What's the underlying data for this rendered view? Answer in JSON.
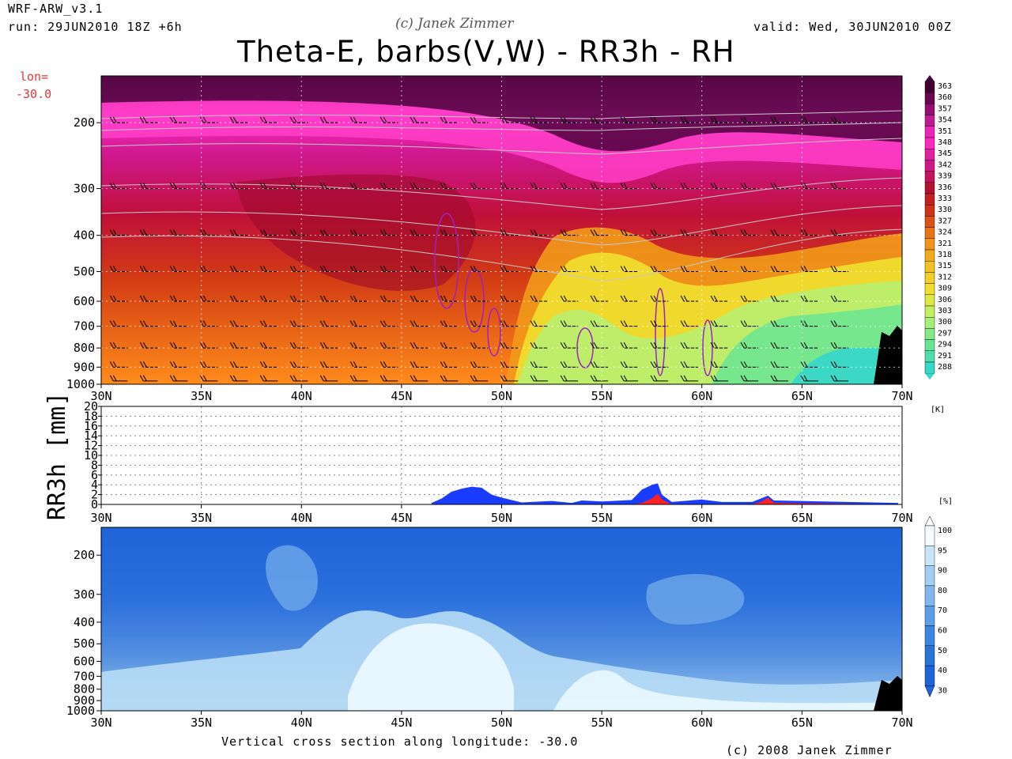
{
  "header": {
    "model": "WRF-ARW_v3.1",
    "run": "run: 29JUN2010 18Z +6h",
    "copyright_top": "(c) Janek Zimmer",
    "valid": "valid: Wed, 30JUN2010 00Z",
    "title": "Theta-E, barbs(V,W) - RR3h - RH",
    "lon_label": "lon=",
    "lon_value": "-30.0"
  },
  "footer": {
    "caption": "Vertical cross section along longitude: -30.0",
    "copyright": "(c) 2008 Janek Zimmer"
  },
  "colors": {
    "theta_low": "#38d8c8",
    "theta_mid": "#f0e030",
    "theta_high": "#ff30c8",
    "theta_top": "#400030",
    "rr_blue": "#1a3cff",
    "rr_red": "#ff2020",
    "rh_low": "#1f63d8",
    "rh_high": "#f4fcff",
    "terrain": "#000000",
    "contour_purple": "#a020c0"
  },
  "chart_data": [
    {
      "type": "heatmap",
      "title": "Theta-E, barbs(V,W)",
      "xlabel": "",
      "ylabel": "",
      "x_ticks": [
        "30N",
        "35N",
        "40N",
        "45N",
        "50N",
        "55N",
        "60N",
        "65N",
        "70N"
      ],
      "xlim": [
        30,
        70
      ],
      "y_ticks": [
        200,
        300,
        400,
        500,
        600,
        700,
        800,
        900,
        1000
      ],
      "ylim": [
        1000,
        150
      ],
      "y_scale": "log",
      "colorbar_levels": [
        363,
        360,
        357,
        354,
        351,
        348,
        345,
        342,
        339,
        336,
        333,
        330,
        327,
        324,
        321,
        318,
        315,
        312,
        309,
        306,
        303,
        300,
        297,
        294,
        291,
        288
      ],
      "colorbar_unit": "[K]",
      "grid": true
    },
    {
      "type": "area",
      "title": "",
      "ylabel": "RR3h [mm]",
      "x_ticks": [
        "30N",
        "35N",
        "40N",
        "45N",
        "50N",
        "55N",
        "60N",
        "65N",
        "70N"
      ],
      "xlim": [
        30,
        70
      ],
      "ylim": [
        0,
        20
      ],
      "y_ticks": [
        0,
        2,
        4,
        6,
        8,
        10,
        12,
        14,
        16,
        18,
        20
      ],
      "x": [
        46.5,
        47,
        47.5,
        48,
        48.5,
        49,
        49.5,
        50,
        51,
        52.5,
        53.5,
        54,
        55,
        56.5,
        57,
        57.5,
        57.8,
        58,
        58.5,
        60,
        61,
        62.5,
        63,
        63.3,
        63.6,
        69.8
      ],
      "series": [
        {
          "values": [
            0.3,
            1.2,
            2.6,
            3.2,
            3.6,
            3.4,
            2.0,
            1.4,
            0.4,
            0.7,
            0.3,
            0.8,
            0.6,
            0.9,
            3.0,
            4.0,
            4.3,
            2.0,
            0.5,
            1.0,
            0.5,
            0.5,
            1.3,
            1.8,
            0.8,
            0.3
          ]
        },
        {
          "values": [
            0,
            0,
            0,
            0,
            0,
            0,
            0,
            0,
            0,
            0,
            0,
            0,
            0,
            0,
            0.3,
            1.2,
            2.2,
            1.0,
            0,
            0,
            0,
            0,
            0.6,
            1.4,
            0.3,
            0
          ]
        }
      ],
      "grid": true
    },
    {
      "type": "heatmap",
      "title": "RH",
      "x_ticks": [
        "30N",
        "35N",
        "40N",
        "45N",
        "50N",
        "55N",
        "60N",
        "65N",
        "70N"
      ],
      "xlim": [
        30,
        70
      ],
      "y_ticks": [
        200,
        300,
        400,
        500,
        600,
        700,
        800,
        900,
        1000
      ],
      "ylim": [
        1000,
        150
      ],
      "y_scale": "log",
      "colorbar_levels": [
        100,
        95,
        90,
        80,
        70,
        60,
        50,
        40,
        30
      ],
      "colorbar_unit": "[%]",
      "grid": false
    }
  ]
}
